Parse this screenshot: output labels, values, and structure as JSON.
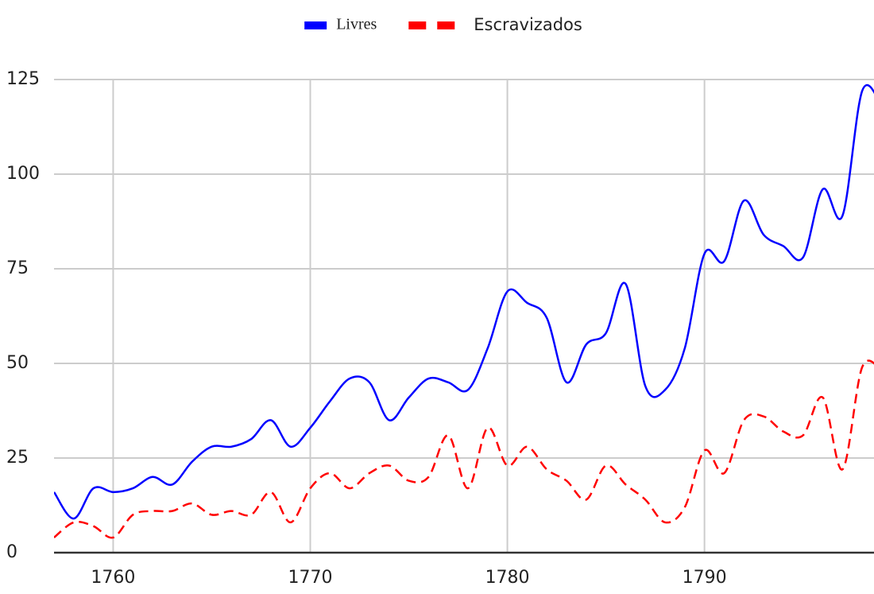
{
  "chart_data": {
    "type": "line",
    "x": [
      1757,
      1758,
      1759,
      1760,
      1761,
      1762,
      1763,
      1764,
      1765,
      1766,
      1767,
      1768,
      1769,
      1770,
      1771,
      1772,
      1773,
      1774,
      1775,
      1776,
      1777,
      1778,
      1779,
      1780,
      1781,
      1782,
      1783,
      1784,
      1785,
      1786,
      1787,
      1788,
      1789,
      1790,
      1791,
      1792,
      1793,
      1794,
      1795,
      1796,
      1797,
      1798,
      1799
    ],
    "series": [
      {
        "name": "Livres",
        "color": "#0000ff",
        "dash": false,
        "values": [
          16,
          9,
          17,
          16,
          17,
          20,
          18,
          24,
          28,
          28,
          30,
          35,
          28,
          33,
          40,
          46,
          45,
          35,
          41,
          46,
          45,
          43,
          54,
          69,
          66,
          62,
          45,
          55,
          58,
          71,
          44,
          43,
          54,
          79,
          77,
          93,
          84,
          81,
          78,
          96,
          89,
          122,
          118
        ]
      },
      {
        "name": "Escravizados",
        "color": "#ff0000",
        "dash": true,
        "values": [
          4,
          8,
          7,
          4,
          10,
          11,
          11,
          13,
          10,
          11,
          10,
          16,
          8,
          17,
          21,
          17,
          21,
          23,
          19,
          20,
          31,
          17,
          33,
          23,
          28,
          22,
          19,
          14,
          23,
          18,
          14,
          8,
          12,
          27,
          21,
          35,
          36,
          32,
          31,
          41,
          22,
          49,
          48
        ]
      }
    ],
    "xlim": [
      1757,
      1798.6
    ],
    "xticks": [
      1760,
      1770,
      1780,
      1790
    ],
    "ylim": [
      0,
      125
    ],
    "yticks": [
      0,
      25,
      50,
      75,
      100,
      125
    ],
    "grid": true,
    "legend": "top"
  }
}
